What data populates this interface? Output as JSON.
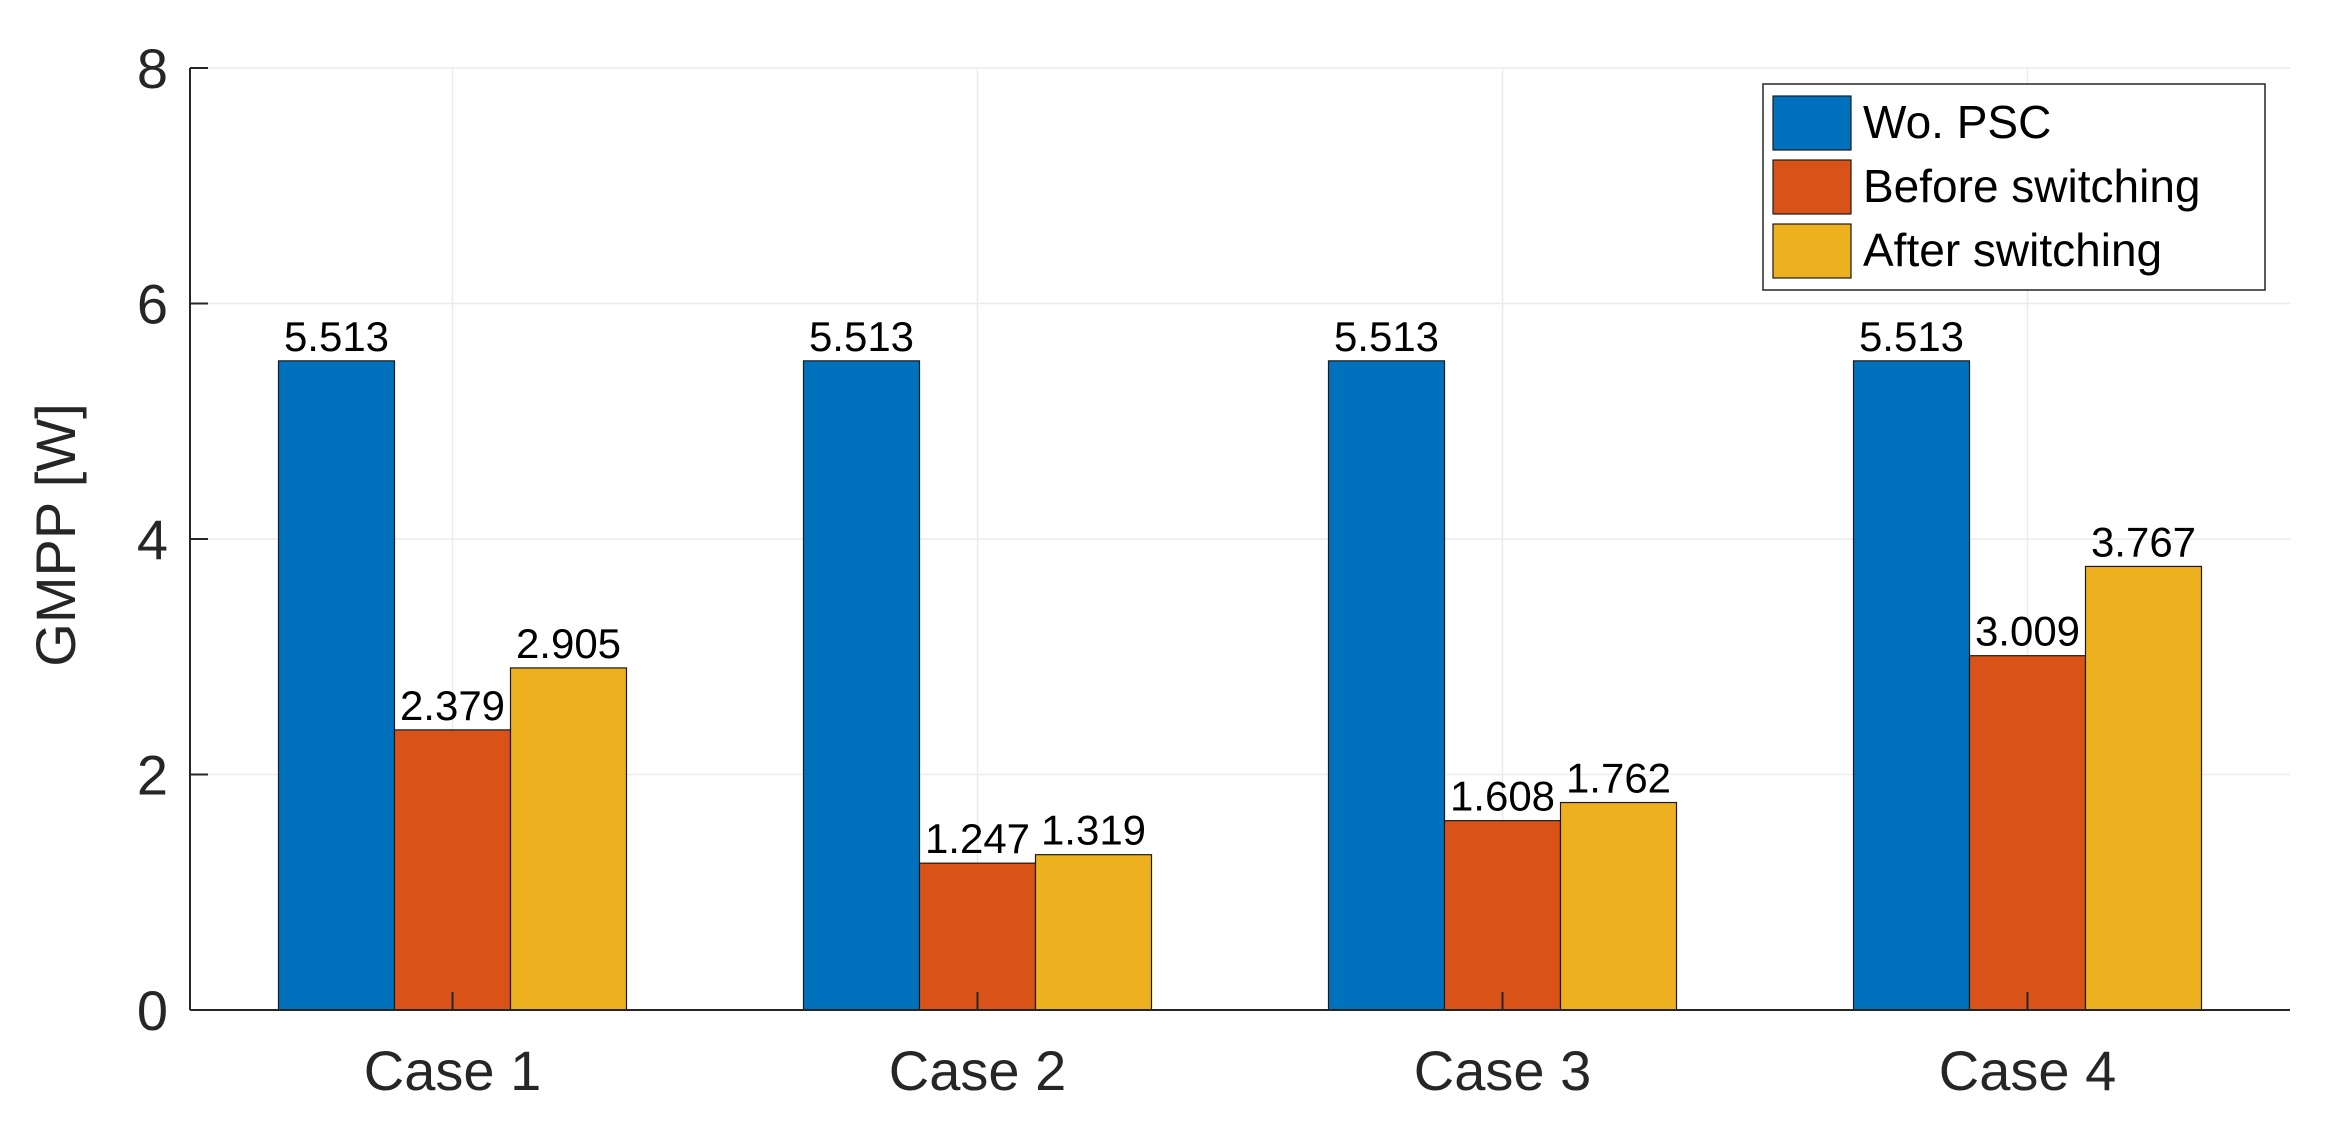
{
  "chart_data": {
    "type": "bar",
    "title": "",
    "xlabel": "",
    "ylabel": "GMPP [W]",
    "ylim": [
      0,
      8
    ],
    "yticks": [
      "0",
      "2",
      "4",
      "6",
      "8"
    ],
    "grid": true,
    "legend_position": "top-right",
    "categories": [
      "Case 1",
      "Case 2",
      "Case 3",
      "Case 4"
    ],
    "series": [
      {
        "name": "Wo. PSC",
        "color": "#0072BD",
        "values": [
          5.513,
          5.513,
          5.513,
          5.513
        ],
        "labels": [
          "5.513",
          "5.513",
          "5.513",
          "5.513"
        ]
      },
      {
        "name": "Before switching",
        "color": "#D95319",
        "values": [
          2.379,
          1.247,
          1.608,
          3.009
        ],
        "labels": [
          "2.379",
          "1.247",
          "1.608",
          "3.009"
        ]
      },
      {
        "name": "After switching",
        "color": "#EDB120",
        "values": [
          2.905,
          1.319,
          1.762,
          3.767
        ],
        "labels": [
          "2.905",
          "1.319",
          "1.762",
          "3.767"
        ]
      }
    ]
  }
}
